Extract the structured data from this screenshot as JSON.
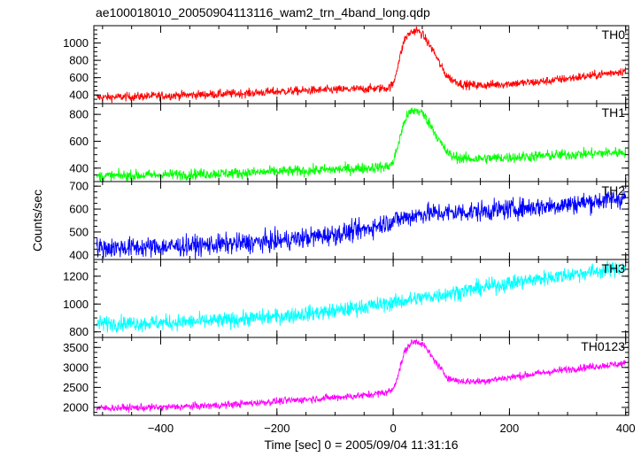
{
  "chart_data": {
    "type": "line",
    "title": "ae100018010_20050904113116_wam2_trn_4band_long.qdp",
    "xlabel": "Time [sec] 0 = 2005/09/04 11:31:16",
    "ylabel": "Counts/sec",
    "xlim": [
      -515,
      405
    ],
    "x_ticks": [
      -400,
      -200,
      0,
      200,
      400
    ],
    "x_tick_labels": [
      "−400",
      "−200",
      "0",
      "200",
      "400"
    ],
    "legend": "none",
    "grid": false,
    "panels": [
      {
        "name": "TH0",
        "color": "#ff0000",
        "ylim": [
          300,
          1200
        ],
        "y_ticks": [
          400,
          600,
          800,
          1000
        ],
        "y_tick_labels": [
          "400",
          "600",
          "800",
          "1000"
        ],
        "x": [
          -510,
          -450,
          -400,
          -350,
          -300,
          -250,
          -200,
          -150,
          -100,
          -50,
          -10,
          0,
          10,
          20,
          30,
          40,
          50,
          60,
          70,
          80,
          90,
          100,
          120,
          150,
          200,
          250,
          300,
          350,
          400
        ],
        "values": [
          370,
          380,
          390,
          400,
          410,
          420,
          440,
          450,
          460,
          470,
          480,
          520,
          800,
          1050,
          1120,
          1150,
          1100,
          1000,
          900,
          760,
          640,
          580,
          520,
          510,
          530,
          550,
          590,
          630,
          680
        ],
        "noise": 25
      },
      {
        "name": "TH1",
        "color": "#00ff00",
        "ylim": [
          300,
          880
        ],
        "y_ticks": [
          400,
          600,
          800
        ],
        "y_tick_labels": [
          "400",
          "600",
          "800"
        ],
        "x": [
          -510,
          -450,
          -400,
          -350,
          -300,
          -250,
          -200,
          -150,
          -100,
          -50,
          -10,
          0,
          10,
          20,
          30,
          40,
          50,
          60,
          70,
          80,
          90,
          100,
          120,
          150,
          200,
          250,
          300,
          350,
          400
        ],
        "values": [
          340,
          345,
          350,
          355,
          360,
          365,
          375,
          380,
          390,
          400,
          410,
          440,
          600,
          760,
          820,
          830,
          810,
          750,
          680,
          600,
          530,
          490,
          470,
          470,
          480,
          490,
          500,
          510,
          520
        ],
        "noise": 20
      },
      {
        "name": "TH2",
        "color": "#0000ff",
        "ylim": [
          380,
          720
        ],
        "y_ticks": [
          400,
          500,
          600,
          700
        ],
        "y_tick_labels": [
          "400",
          "500",
          "600",
          "700"
        ],
        "x": [
          -510,
          -400,
          -300,
          -200,
          -100,
          -50,
          0,
          50,
          100,
          150,
          200,
          250,
          300,
          350,
          400
        ],
        "values": [
          430,
          435,
          445,
          460,
          490,
          510,
          550,
          580,
          585,
          590,
          600,
          610,
          620,
          635,
          650
        ],
        "noise": 22
      },
      {
        "name": "TH3",
        "color": "#00ffff",
        "ylim": [
          760,
          1320
        ],
        "y_ticks": [
          800,
          1000,
          1200
        ],
        "y_tick_labels": [
          "800",
          "1000",
          "1200"
        ],
        "x": [
          -510,
          -400,
          -300,
          -200,
          -100,
          0,
          100,
          200,
          300,
          400
        ],
        "values": [
          860,
          865,
          880,
          910,
          950,
          1010,
          1080,
          1150,
          1210,
          1260
        ],
        "noise": 28
      },
      {
        "name": "TH0123",
        "color": "#ff00ff",
        "ylim": [
          1800,
          3750
        ],
        "y_ticks": [
          2000,
          2500,
          3000,
          3500
        ],
        "y_tick_labels": [
          "2000",
          "2500",
          "3000",
          "3500"
        ],
        "x": [
          -510,
          -450,
          -400,
          -300,
          -200,
          -100,
          -50,
          -10,
          0,
          10,
          20,
          30,
          40,
          50,
          60,
          70,
          80,
          90,
          100,
          120,
          150,
          200,
          250,
          300,
          350,
          400
        ],
        "values": [
          1980,
          1990,
          2000,
          2050,
          2150,
          2250,
          2300,
          2380,
          2450,
          2900,
          3400,
          3600,
          3650,
          3600,
          3400,
          3200,
          3000,
          2800,
          2700,
          2650,
          2650,
          2750,
          2850,
          2950,
          3030,
          3100
        ],
        "noise": 45
      }
    ]
  }
}
